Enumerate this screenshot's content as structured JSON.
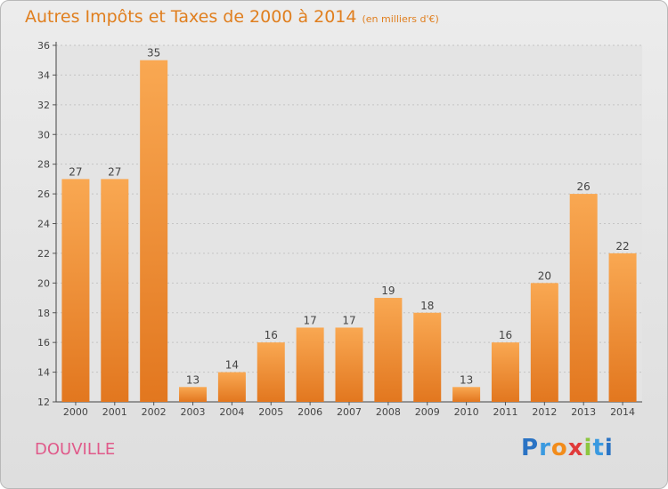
{
  "title": "Autres Impôts et Taxes de 2000 à 2014",
  "unit": "(en milliers d'€)",
  "commune": "DOUVILLE",
  "logo": {
    "letters": [
      "P",
      "r",
      "o",
      "x",
      "i",
      "t",
      "i"
    ],
    "colors": [
      "#2a73c4",
      "#3a9ae0",
      "#f28c1b",
      "#e03a3a",
      "#8cc63f",
      "#3a9ae0",
      "#2a73c4"
    ]
  },
  "colors": {
    "bar_light": "#f9a852",
    "bar_dark": "#e2771f",
    "title": "#e07f1f",
    "commune": "#e05a8a"
  },
  "chart_data": {
    "type": "bar",
    "categories": [
      "2000",
      "2001",
      "2002",
      "2003",
      "2004",
      "2005",
      "2006",
      "2007",
      "2008",
      "2009",
      "2010",
      "2011",
      "2012",
      "2013",
      "2014"
    ],
    "values": [
      27,
      27,
      35,
      13,
      14,
      16,
      17,
      17,
      19,
      18,
      13,
      16,
      20,
      26,
      22
    ],
    "ylim": [
      12,
      36
    ],
    "yticks": [
      12,
      14,
      16,
      18,
      20,
      22,
      24,
      26,
      28,
      30,
      32,
      34,
      36
    ],
    "grid": true,
    "data_labels": true
  }
}
